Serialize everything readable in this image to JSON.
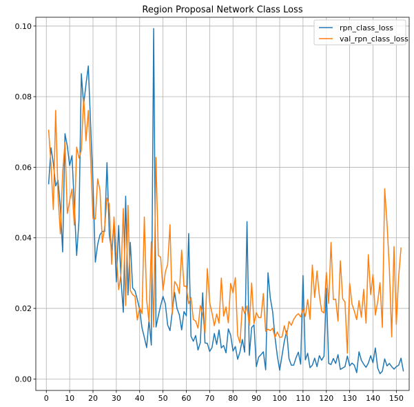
{
  "chart_data": {
    "type": "line",
    "title": "Region Proposal Network Class Loss",
    "xlabel": "",
    "ylabel": "",
    "xlim": [
      -4.5,
      155.5
    ],
    "ylim": [
      -0.00325,
      0.1025
    ],
    "grid": true,
    "legend_position": "top-right",
    "x_ticks": [
      0,
      10,
      20,
      30,
      40,
      50,
      60,
      70,
      80,
      90,
      100,
      110,
      120,
      130,
      140,
      150
    ],
    "y_ticks": [
      0.0,
      0.02,
      0.04,
      0.06,
      0.08,
      0.1
    ],
    "y_tick_labels": [
      "0.00",
      "0.02",
      "0.04",
      "0.06",
      "0.08",
      "0.10"
    ],
    "series": [
      {
        "name": "rpn_class_loss",
        "color": "#1f77b4",
        "x_start": 1,
        "values": [
          0.0553,
          0.0655,
          0.0612,
          0.0547,
          0.0563,
          0.0488,
          0.036,
          0.0695,
          0.066,
          0.0605,
          0.0633,
          0.0491,
          0.035,
          0.045,
          0.0865,
          0.0777,
          0.0835,
          0.0887,
          0.0716,
          0.0558,
          0.0331,
          0.0381,
          0.0409,
          0.0418,
          0.0418,
          0.0613,
          0.0408,
          0.0365,
          0.0443,
          0.0275,
          0.0435,
          0.0281,
          0.0189,
          0.0518,
          0.0238,
          0.0387,
          0.0258,
          0.025,
          0.0225,
          0.0197,
          0.0145,
          0.0118,
          0.0089,
          0.0166,
          0.0096,
          0.0993,
          0.0147,
          0.0179,
          0.0208,
          0.0234,
          0.0213,
          0.0153,
          0.0137,
          0.0192,
          0.0245,
          0.02,
          0.0182,
          0.0139,
          0.0191,
          0.0179,
          0.0412,
          0.0121,
          0.0107,
          0.0123,
          0.0082,
          0.0103,
          0.0244,
          0.0102,
          0.0101,
          0.0078,
          0.0089,
          0.0129,
          0.0098,
          0.0139,
          0.0088,
          0.0095,
          0.0074,
          0.0142,
          0.0124,
          0.0079,
          0.0092,
          0.0056,
          0.0077,
          0.0112,
          0.0076,
          0.0446,
          0.0067,
          0.0146,
          0.0153,
          0.0035,
          0.0062,
          0.0069,
          0.0077,
          0.0026,
          0.0301,
          0.0229,
          0.019,
          0.0118,
          0.0065,
          0.0025,
          0.0066,
          0.0107,
          0.0136,
          0.0058,
          0.0039,
          0.0039,
          0.006,
          0.0076,
          0.0042,
          0.0293,
          0.0054,
          0.0073,
          0.0032,
          0.0039,
          0.0059,
          0.0035,
          0.0066,
          0.0053,
          0.0065,
          0.0257,
          0.0044,
          0.0041,
          0.0058,
          0.0044,
          0.0069,
          0.0027,
          0.0031,
          0.0035,
          0.0065,
          0.0037,
          0.0045,
          0.0039,
          0.0018,
          0.0077,
          0.0053,
          0.0042,
          0.0033,
          0.0045,
          0.0066,
          0.0046,
          0.0088,
          0.0031,
          0.0015,
          0.0022,
          0.0057,
          0.0037,
          0.0044,
          0.0035,
          0.0028,
          0.0035,
          0.0039,
          0.0059,
          0.0023
        ]
      },
      {
        "name": "val_rpn_class_loss",
        "color": "#ff7f0e",
        "x_start": 1,
        "values": [
          0.0705,
          0.0608,
          0.048,
          0.0761,
          0.0523,
          0.0411,
          0.0585,
          0.067,
          0.0469,
          0.0505,
          0.0538,
          0.0436,
          0.0657,
          0.0626,
          0.0648,
          0.0798,
          0.0675,
          0.0761,
          0.0621,
          0.0455,
          0.0453,
          0.0567,
          0.0534,
          0.0387,
          0.0429,
          0.0513,
          0.0494,
          0.0325,
          0.0459,
          0.0351,
          0.0253,
          0.0298,
          0.0483,
          0.0208,
          0.0492,
          0.0251,
          0.0239,
          0.0234,
          0.0167,
          0.0202,
          0.0185,
          0.0459,
          0.0223,
          0.0163,
          0.0389,
          0.0147,
          0.0628,
          0.035,
          0.0345,
          0.0251,
          0.0303,
          0.0325,
          0.0437,
          0.0185,
          0.0276,
          0.0266,
          0.0242,
          0.0365,
          0.0263,
          0.0263,
          0.0213,
          0.0231,
          0.0169,
          0.0164,
          0.0144,
          0.0208,
          0.0185,
          0.0129,
          0.0313,
          0.0217,
          0.0187,
          0.0151,
          0.0184,
          0.0158,
          0.0286,
          0.0178,
          0.0204,
          0.0159,
          0.0271,
          0.0244,
          0.0287,
          0.0123,
          0.0102,
          0.0205,
          0.0185,
          0.0207,
          0.0152,
          0.0272,
          0.0157,
          0.0188,
          0.0174,
          0.0174,
          0.0242,
          0.0135,
          0.0141,
          0.0137,
          0.0144,
          0.0118,
          0.0133,
          0.0118,
          0.0119,
          0.0151,
          0.0123,
          0.0163,
          0.0152,
          0.0169,
          0.0179,
          0.0185,
          0.0176,
          0.0199,
          0.0177,
          0.0225,
          0.0169,
          0.0323,
          0.0231,
          0.0306,
          0.0237,
          0.0192,
          0.0187,
          0.0302,
          0.0214,
          0.0387,
          0.0225,
          0.0226,
          0.0164,
          0.0335,
          0.0227,
          0.0218,
          0.0073,
          0.0271,
          0.0212,
          0.0192,
          0.0168,
          0.0222,
          0.0175,
          0.0254,
          0.0158,
          0.0352,
          0.0239,
          0.0296,
          0.0181,
          0.0219,
          0.0273,
          0.0146,
          0.0539,
          0.0442,
          0.0314,
          0.0119,
          0.0375,
          0.0155,
          0.0291,
          0.0371
        ]
      }
    ]
  }
}
